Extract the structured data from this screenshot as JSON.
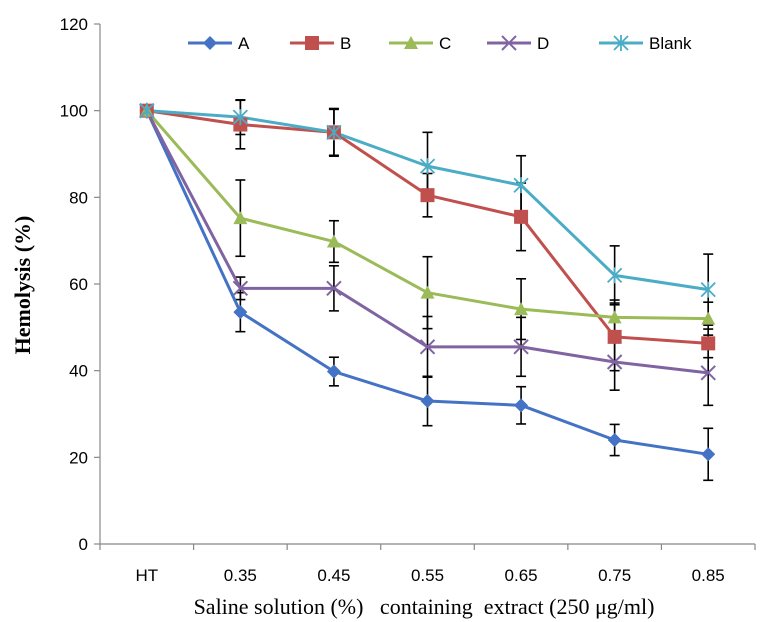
{
  "chart_data": {
    "type": "line",
    "title": "",
    "xlabel": "Saline solution (%)   containing  extract (250 μg/ml)",
    "ylabel": "Hemolysis (%)",
    "categories": [
      "HT",
      "0.35",
      "0.45",
      "0.55",
      "0.65",
      "0.75",
      "0.85"
    ],
    "ylim": [
      0,
      120
    ],
    "yticks": [
      0,
      20,
      40,
      60,
      80,
      100,
      120
    ],
    "grid": false,
    "legend_position": "top",
    "series": [
      {
        "name": "A",
        "color": "#4472C4",
        "marker": "diamond",
        "values": [
          100,
          53.5,
          39.8,
          33,
          32,
          24,
          20.7
        ],
        "errors": [
          0,
          4.5,
          3.3,
          5.7,
          4.3,
          3.6,
          6.0
        ]
      },
      {
        "name": "B",
        "color": "#C0504D",
        "marker": "square",
        "values": [
          100,
          96.8,
          95,
          80.5,
          75.5,
          47.8,
          46.3
        ],
        "errors": [
          0,
          5.6,
          5.3,
          5.0,
          7.8,
          7.8,
          3.3
        ]
      },
      {
        "name": "C",
        "color": "#9BBB59",
        "marker": "triangle",
        "values": [
          100,
          75.2,
          69.8,
          58,
          54.2,
          52.3,
          52
        ],
        "errors": [
          0,
          8.8,
          4.8,
          8.3,
          7.0,
          4.0,
          3.8
        ]
      },
      {
        "name": "D",
        "color": "#8064A2",
        "marker": "x",
        "values": [
          100,
          59,
          59,
          45.5,
          45.5,
          42,
          39.5
        ],
        "errors": [
          0,
          2.6,
          5.2,
          7.0,
          6.8,
          6.5,
          7.5
        ]
      },
      {
        "name": "Blank",
        "color": "#4BACC6",
        "marker": "star",
        "values": [
          100,
          98.5,
          95,
          87.2,
          82.8,
          62,
          58.7
        ],
        "errors": [
          0,
          4.0,
          5.5,
          7.8,
          6.8,
          6.8,
          8.2
        ]
      }
    ]
  }
}
